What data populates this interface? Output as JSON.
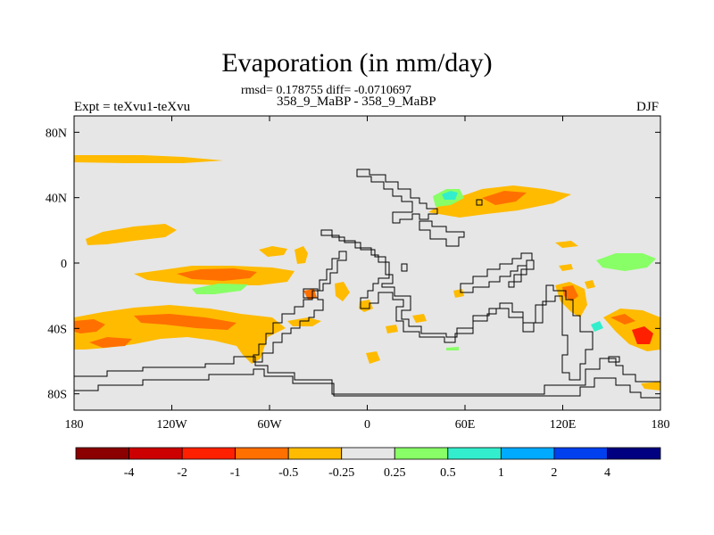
{
  "title": "Evaporation (in mm/day)",
  "stats": "rmsd= 0.178755 diff= -0.0710697",
  "subtitle": "358_9_MaBP - 358_9_MaBP",
  "left_label": "Expt = teXvu1-teXvu",
  "right_label": "DJF",
  "map": {
    "background": "#e6e6e6",
    "lon_range": [
      -180,
      180
    ],
    "lat_range": [
      -90,
      90
    ],
    "lon_ticks": [
      {
        "value": -180,
        "label": "180"
      },
      {
        "value": -120,
        "label": "120W"
      },
      {
        "value": -60,
        "label": "60W"
      },
      {
        "value": 0,
        "label": "0"
      },
      {
        "value": 60,
        "label": "60E"
      },
      {
        "value": 120,
        "label": "120E"
      },
      {
        "value": 180,
        "label": "180"
      }
    ],
    "lat_ticks": [
      {
        "value": 80,
        "label": "80N"
      },
      {
        "value": 40,
        "label": "40N"
      },
      {
        "value": 0,
        "label": "0"
      },
      {
        "value": -40,
        "label": "40S"
      },
      {
        "value": -80,
        "label": "80S"
      }
    ]
  },
  "colorbar": {
    "colors": [
      "#8b0000",
      "#cc0000",
      "#ff2000",
      "#ff7000",
      "#ffbb00",
      "#e6e6e6",
      "#88ff66",
      "#33eecc",
      "#00aaff",
      "#0040ee",
      "#000080"
    ],
    "labels": [
      "-4",
      "-2",
      "-1",
      "-0.5",
      "-0.25",
      "0.25",
      "0.5",
      "1",
      "2",
      "4"
    ]
  }
}
